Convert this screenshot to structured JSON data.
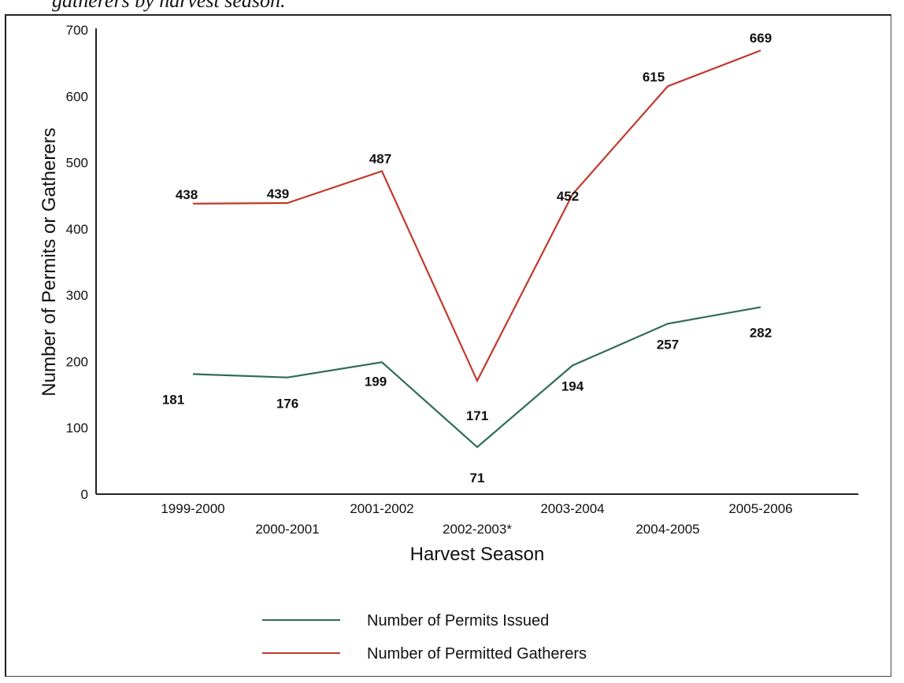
{
  "caption": "gatherers by harvest season.",
  "chart_data": {
    "type": "line",
    "title": "",
    "xlabel": "Harvest Season",
    "ylabel": "Number of Permits or Gatherers",
    "ylim": [
      0,
      700
    ],
    "yticks": [
      "0",
      "100",
      "200",
      "300",
      "400",
      "500",
      "600",
      "700"
    ],
    "categories": [
      "1999-2000",
      "2000-2001",
      "2001-2002",
      "2002-2003*",
      "2003-2004",
      "2004-2005",
      "2005-2006"
    ],
    "grid": false,
    "legend_position": "bottom",
    "series": [
      {
        "name": "Number of Permits Issued",
        "color": "#2f6b5a",
        "values": [
          181,
          176,
          199,
          71,
          194,
          257,
          282
        ],
        "labels": [
          "181",
          "176",
          "199",
          "71",
          "194",
          "257",
          "282"
        ]
      },
      {
        "name": "Number of Permitted Gatherers",
        "color": "#c0392b",
        "values": [
          438,
          439,
          487,
          171,
          452,
          615,
          669
        ],
        "labels": [
          "438",
          "439",
          "487",
          "171",
          "452",
          "615",
          "669"
        ]
      }
    ]
  }
}
